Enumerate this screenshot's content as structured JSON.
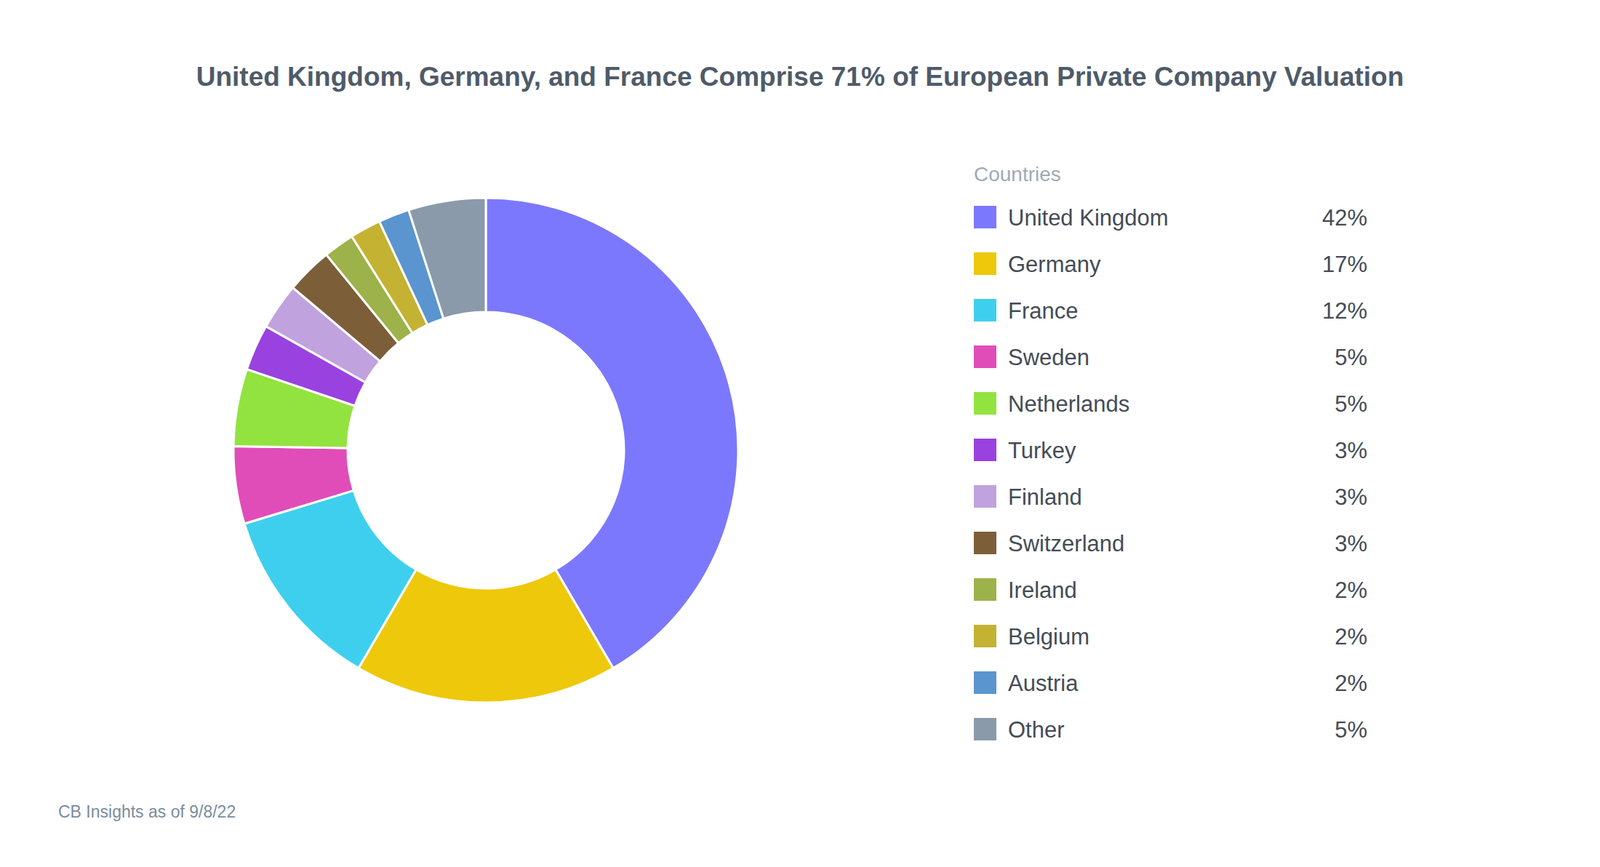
{
  "chart_data": {
    "type": "pie",
    "title": "United Kingdom, Germany, and France Comprise 71% of European Private Company Valuation",
    "legend_title": "Countries",
    "legend": "right",
    "categories": [
      "United Kingdom",
      "Germany",
      "France",
      "Sweden",
      "Netherlands",
      "Turkey",
      "Finland",
      "Switzerland",
      "Ireland",
      "Belgium",
      "Austria",
      "Other"
    ],
    "values": [
      42,
      17,
      12,
      5,
      5,
      3,
      3,
      3,
      2,
      2,
      2,
      5
    ],
    "value_labels": [
      "42%",
      "17%",
      "12%",
      "5%",
      "5%",
      "3%",
      "3%",
      "3%",
      "2%",
      "2%",
      "2%",
      "5%"
    ],
    "colors": [
      "#7b78fe",
      "#eec80b",
      "#3fcfee",
      "#e04db8",
      "#92e33f",
      "#9a42e0",
      "#c0a2de",
      "#7c5f39",
      "#9db24a",
      "#c4b232",
      "#5a95cf",
      "#8a9aab"
    ],
    "source": "CB Insights as of 9/8/22"
  }
}
